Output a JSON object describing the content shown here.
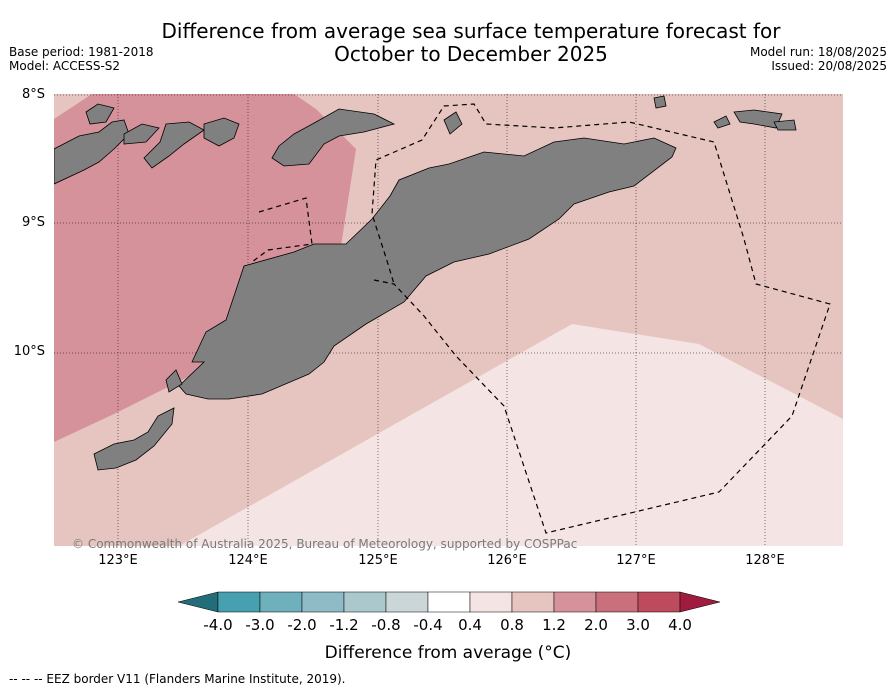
{
  "title_line1": "Difference from average sea surface temperature forecast for",
  "title_line2": "October to December 2025",
  "meta_left": [
    "Base period: 1981-2018",
    "Model: ACCESS-S2"
  ],
  "meta_right": [
    "Model run: 18/08/2025",
    "Issued: 20/08/2025"
  ],
  "lat_labels": [
    "8°S",
    "9°S",
    "10°S"
  ],
  "lon_labels": [
    "123°E",
    "124°E",
    "125°E",
    "126°E",
    "127°E",
    "128°E"
  ],
  "copyright": "© Commonwealth of Australia 2025, Bureau of Meteorology, supported by COSPPac",
  "colorbar": {
    "ticks": [
      "-4.0",
      "-3.0",
      "-2.0",
      "-1.2",
      "-0.8",
      "-0.4",
      "0.4",
      "0.8",
      "1.2",
      "2.0",
      "3.0",
      "4.0"
    ],
    "colors": [
      "#226d7a",
      "#47a0b0",
      "#6fb0bd",
      "#8ebbc6",
      "#abc9cd",
      "#cad6d8",
      "#ffffff",
      "#f4e4e3",
      "#e6c4c0",
      "#d6929a",
      "#c9707c",
      "#bd4a5d",
      "#a01c3f"
    ],
    "label": "Difference from average (°C)"
  },
  "legend": "--  --  -- EEZ border V11 (Flanders Marine Institute, 2019).",
  "map_colors": {
    "land": "#808080",
    "warm_1": "#f4e4e3",
    "warm_2": "#e6c4c0",
    "warm_3": "#d6929a"
  }
}
